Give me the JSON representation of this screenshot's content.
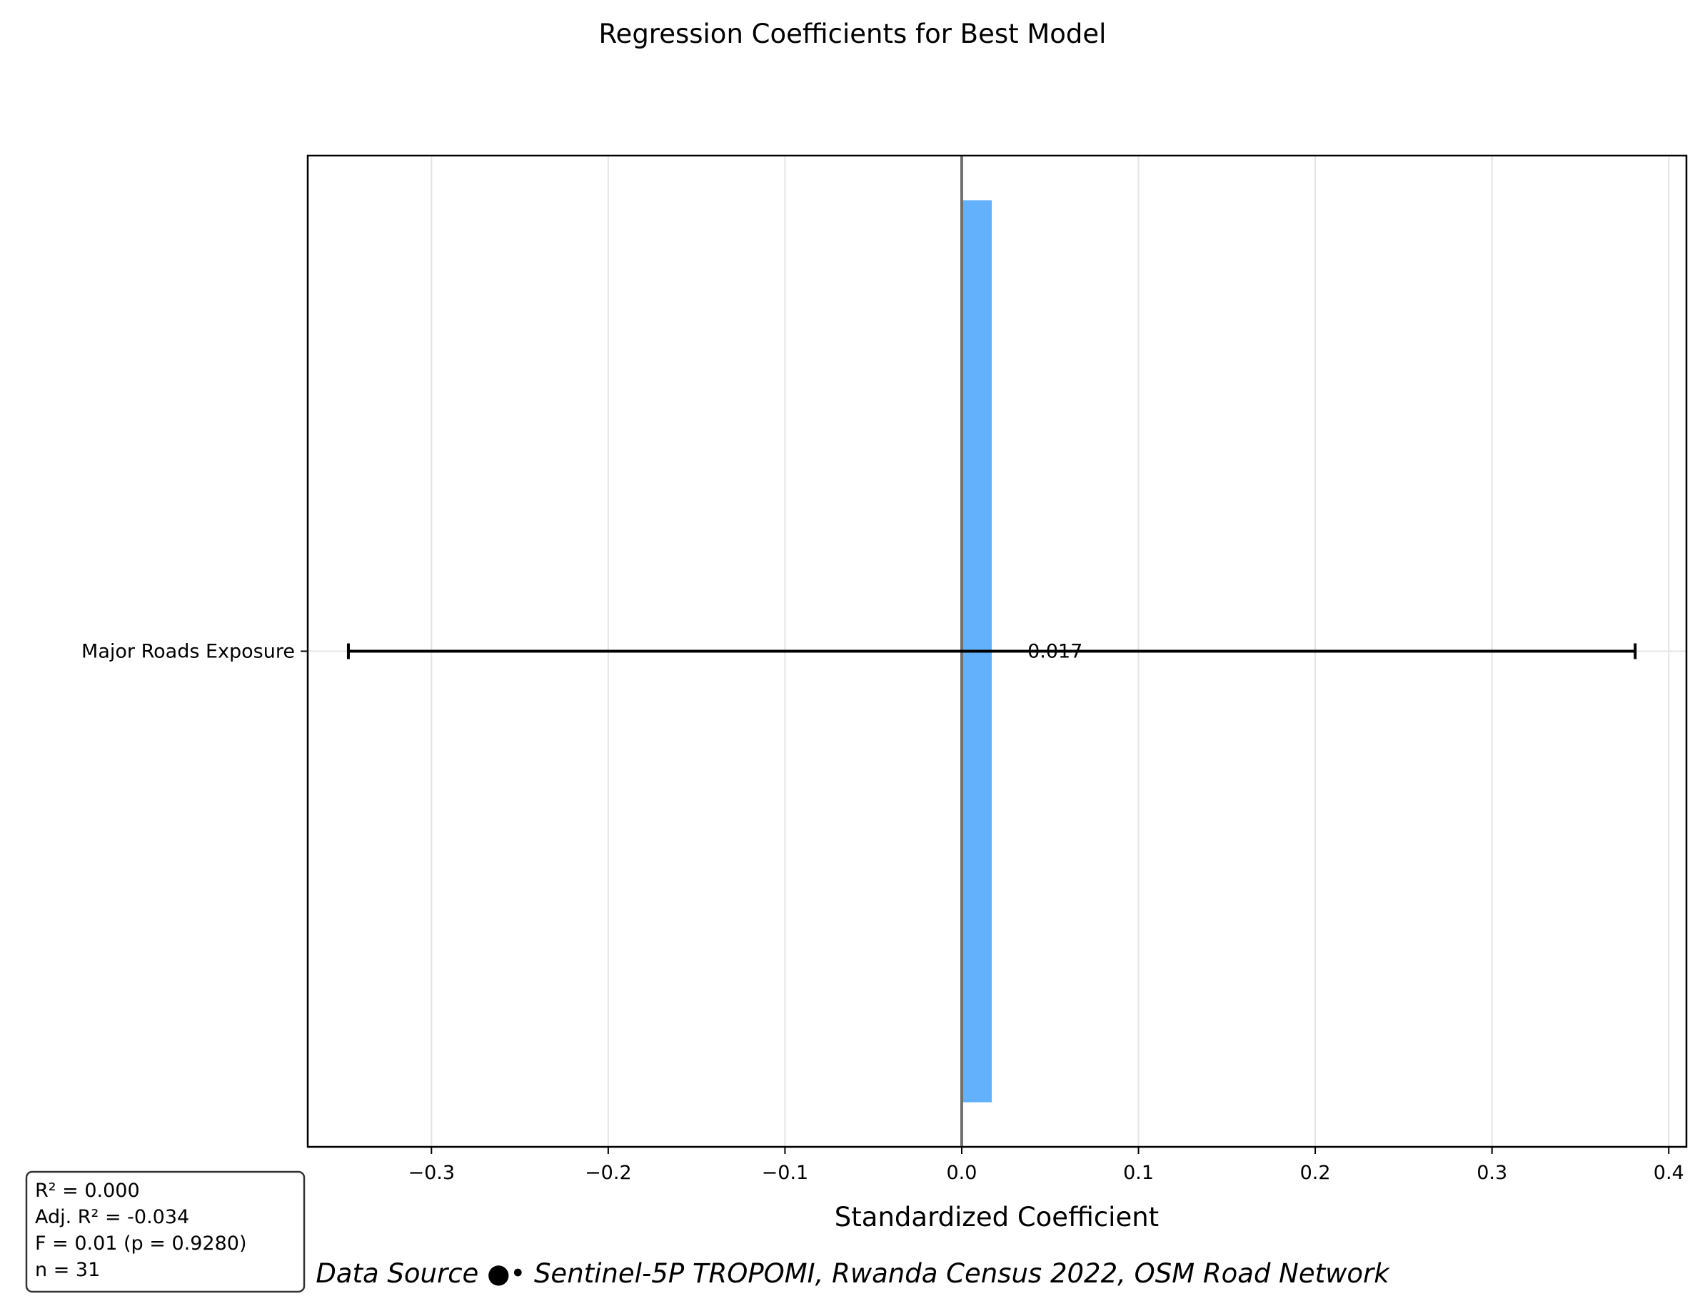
{
  "chart_data": {
    "type": "bar",
    "orientation": "horizontal",
    "title": "Regression Coefficients for Best Model",
    "xlabel": "Standardized Coefficient",
    "ylabel": "",
    "categories": [
      "Major Roads Exposure"
    ],
    "values": [
      0.017
    ],
    "value_labels": [
      "0.017"
    ],
    "error_bars": [
      {
        "low": -0.347,
        "high": 0.381
      }
    ],
    "xlim": [
      -0.37,
      0.41
    ],
    "xticks": [
      -0.3,
      -0.2,
      -0.1,
      0.0,
      0.1,
      0.2,
      0.3,
      0.4
    ],
    "xtick_labels": [
      "−0.3",
      "−0.2",
      "−0.1",
      "0.0",
      "0.1",
      "0.2",
      "0.3",
      "0.4"
    ],
    "reference_line": 0.0,
    "grid": "vertical",
    "legend": "none",
    "colors": {
      "bar": "#63b0fc",
      "error_bar": "#000000",
      "reference_line": "#707070",
      "grid": "#e4e4e4"
    }
  },
  "stats_box": {
    "lines": [
      "R² = 0.000",
      "Adj. R² = -0.034",
      "F = 0.01 (p = 0.9280)",
      "n = 31"
    ]
  },
  "source": {
    "text": "Data Source ●• Sentinel-5P TROPOMI, Rwanda Census 2022, OSM Road Network"
  }
}
